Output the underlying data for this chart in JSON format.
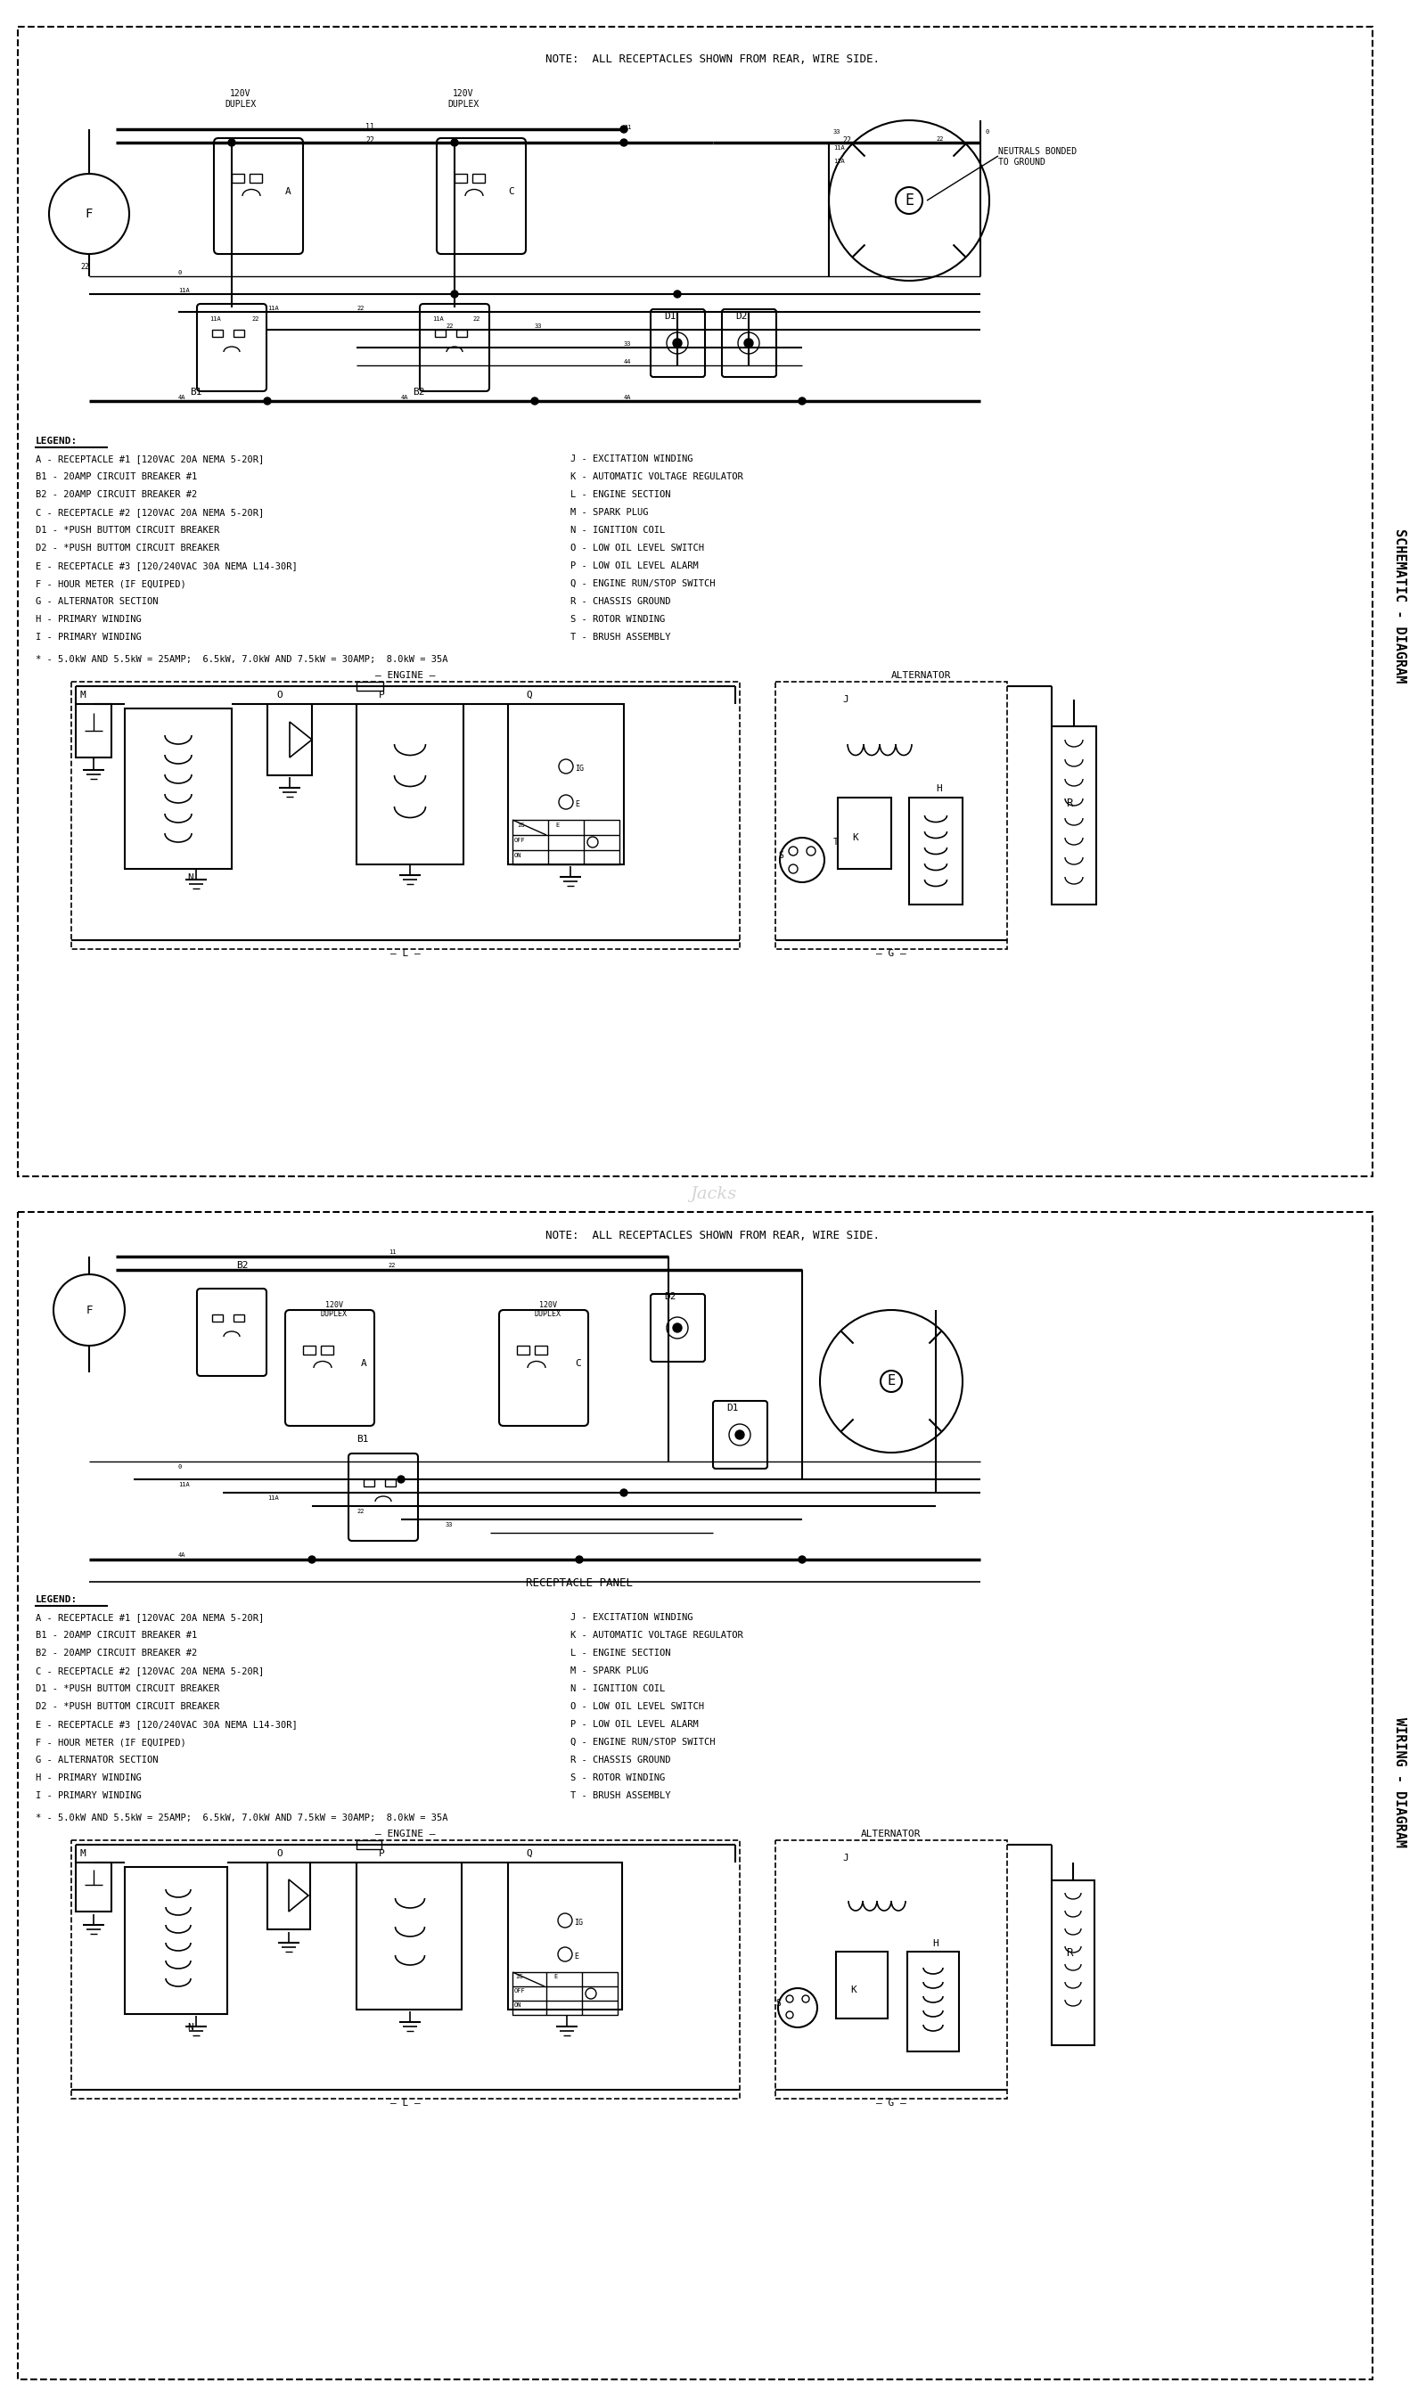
{
  "bg_color": "#ffffff",
  "border_color": "#000000",
  "line_color": "#000000",
  "text_color": "#000000",
  "fig_width": 16.0,
  "fig_height": 26.92,
  "title_top": "NOTE:  ALL RECEPTACLES SHOWN FROM REAR, WIRE SIDE.",
  "right_label_top": "SCHEMATIC - DIAGRAM",
  "right_label_bottom": "WIRING - DIAGRAM",
  "legend_items_left": [
    "A - RECEPTACLE #1 [120VAC 20A NEMA 5-20R]",
    "B1 - 20AMP CIRCUIT BREAKER #1",
    "B2 - 20AMP CIRCUIT BREAKER #2",
    "C - RECEPTACLE #2 [120VAC 20A NEMA 5-20R]",
    "D1 - *PUSH BUTTOM CIRCUIT BREAKER",
    "D2 - *PUSH BUTTOM CIRCUIT BREAKER",
    "E - RECEPTACLE #3 [120/240VAC 30A NEMA L14-30R]",
    "F - HOUR METER (IF EQUIPED)",
    "G - ALTERNATOR SECTION",
    "H - PRIMARY WINDING",
    "I - PRIMARY WINDING"
  ],
  "legend_items_right": [
    "J - EXCITATION WINDING",
    "K - AUTOMATIC VOLTAGE REGULATOR",
    "L - ENGINE SECTION",
    "M - SPARK PLUG",
    "N - IGNITION COIL",
    "O - LOW OIL LEVEL SWITCH",
    "P - LOW OIL LEVEL ALARM",
    "Q - ENGINE RUN/STOP SWITCH",
    "R - CHASSIS GROUND",
    "S - ROTOR WINDING",
    "T - BRUSH ASSEMBLY"
  ],
  "amp_note": "* - 5.0kW AND 5.5kW = 25AMP;  6.5kW, 7.0kW AND 7.5kW = 30AMP;  8.0kW = 35A"
}
